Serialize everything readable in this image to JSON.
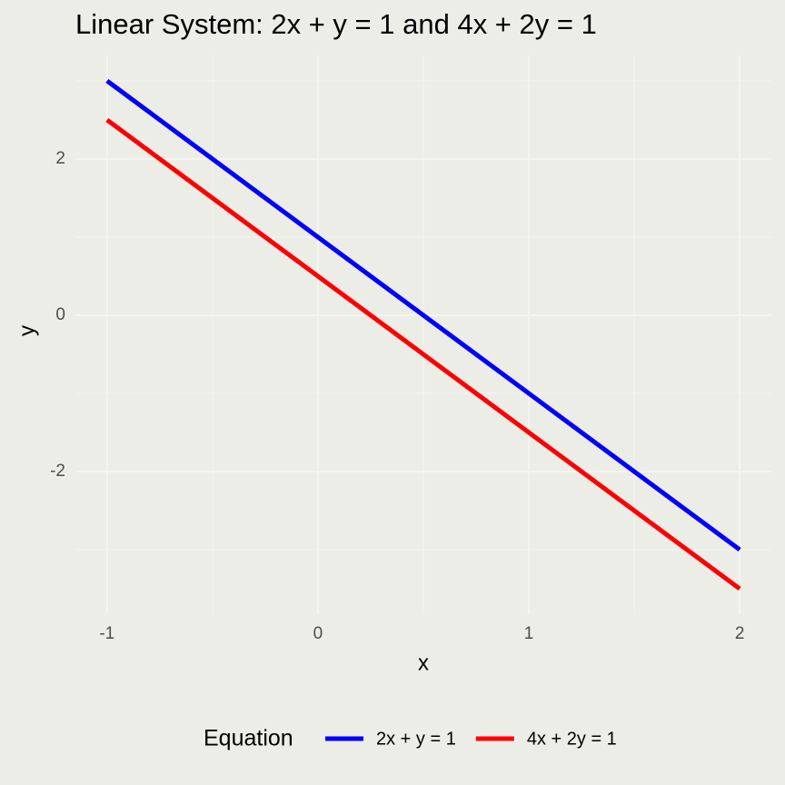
{
  "chart_data": {
    "type": "line",
    "title": "Linear System: 2x + y = 1 and 4x + 2y = 1",
    "x_label": "x",
    "y_label": "y",
    "x": [
      -1,
      0,
      1,
      2
    ],
    "series": [
      {
        "name": "2x + y = 1",
        "color": "#0000ff",
        "values": [
          3,
          1,
          -1,
          -3
        ]
      },
      {
        "name": "4x + 2y = 1",
        "color": "#ff0000",
        "values": [
          2.5,
          0.5,
          -1.5,
          -3.5
        ]
      }
    ],
    "xlim": [
      -1.15,
      2.15
    ],
    "ylim": [
      -3.825,
      3.325
    ],
    "xticks": [
      -1,
      0,
      1,
      2
    ],
    "yticks": [
      -2,
      0,
      2
    ],
    "xminor": [
      -0.5,
      0.5,
      1.5
    ],
    "yminor": [
      -3,
      -1,
      1,
      3
    ],
    "grid": true,
    "legend_title": "Equation",
    "legend_position": "bottom"
  }
}
